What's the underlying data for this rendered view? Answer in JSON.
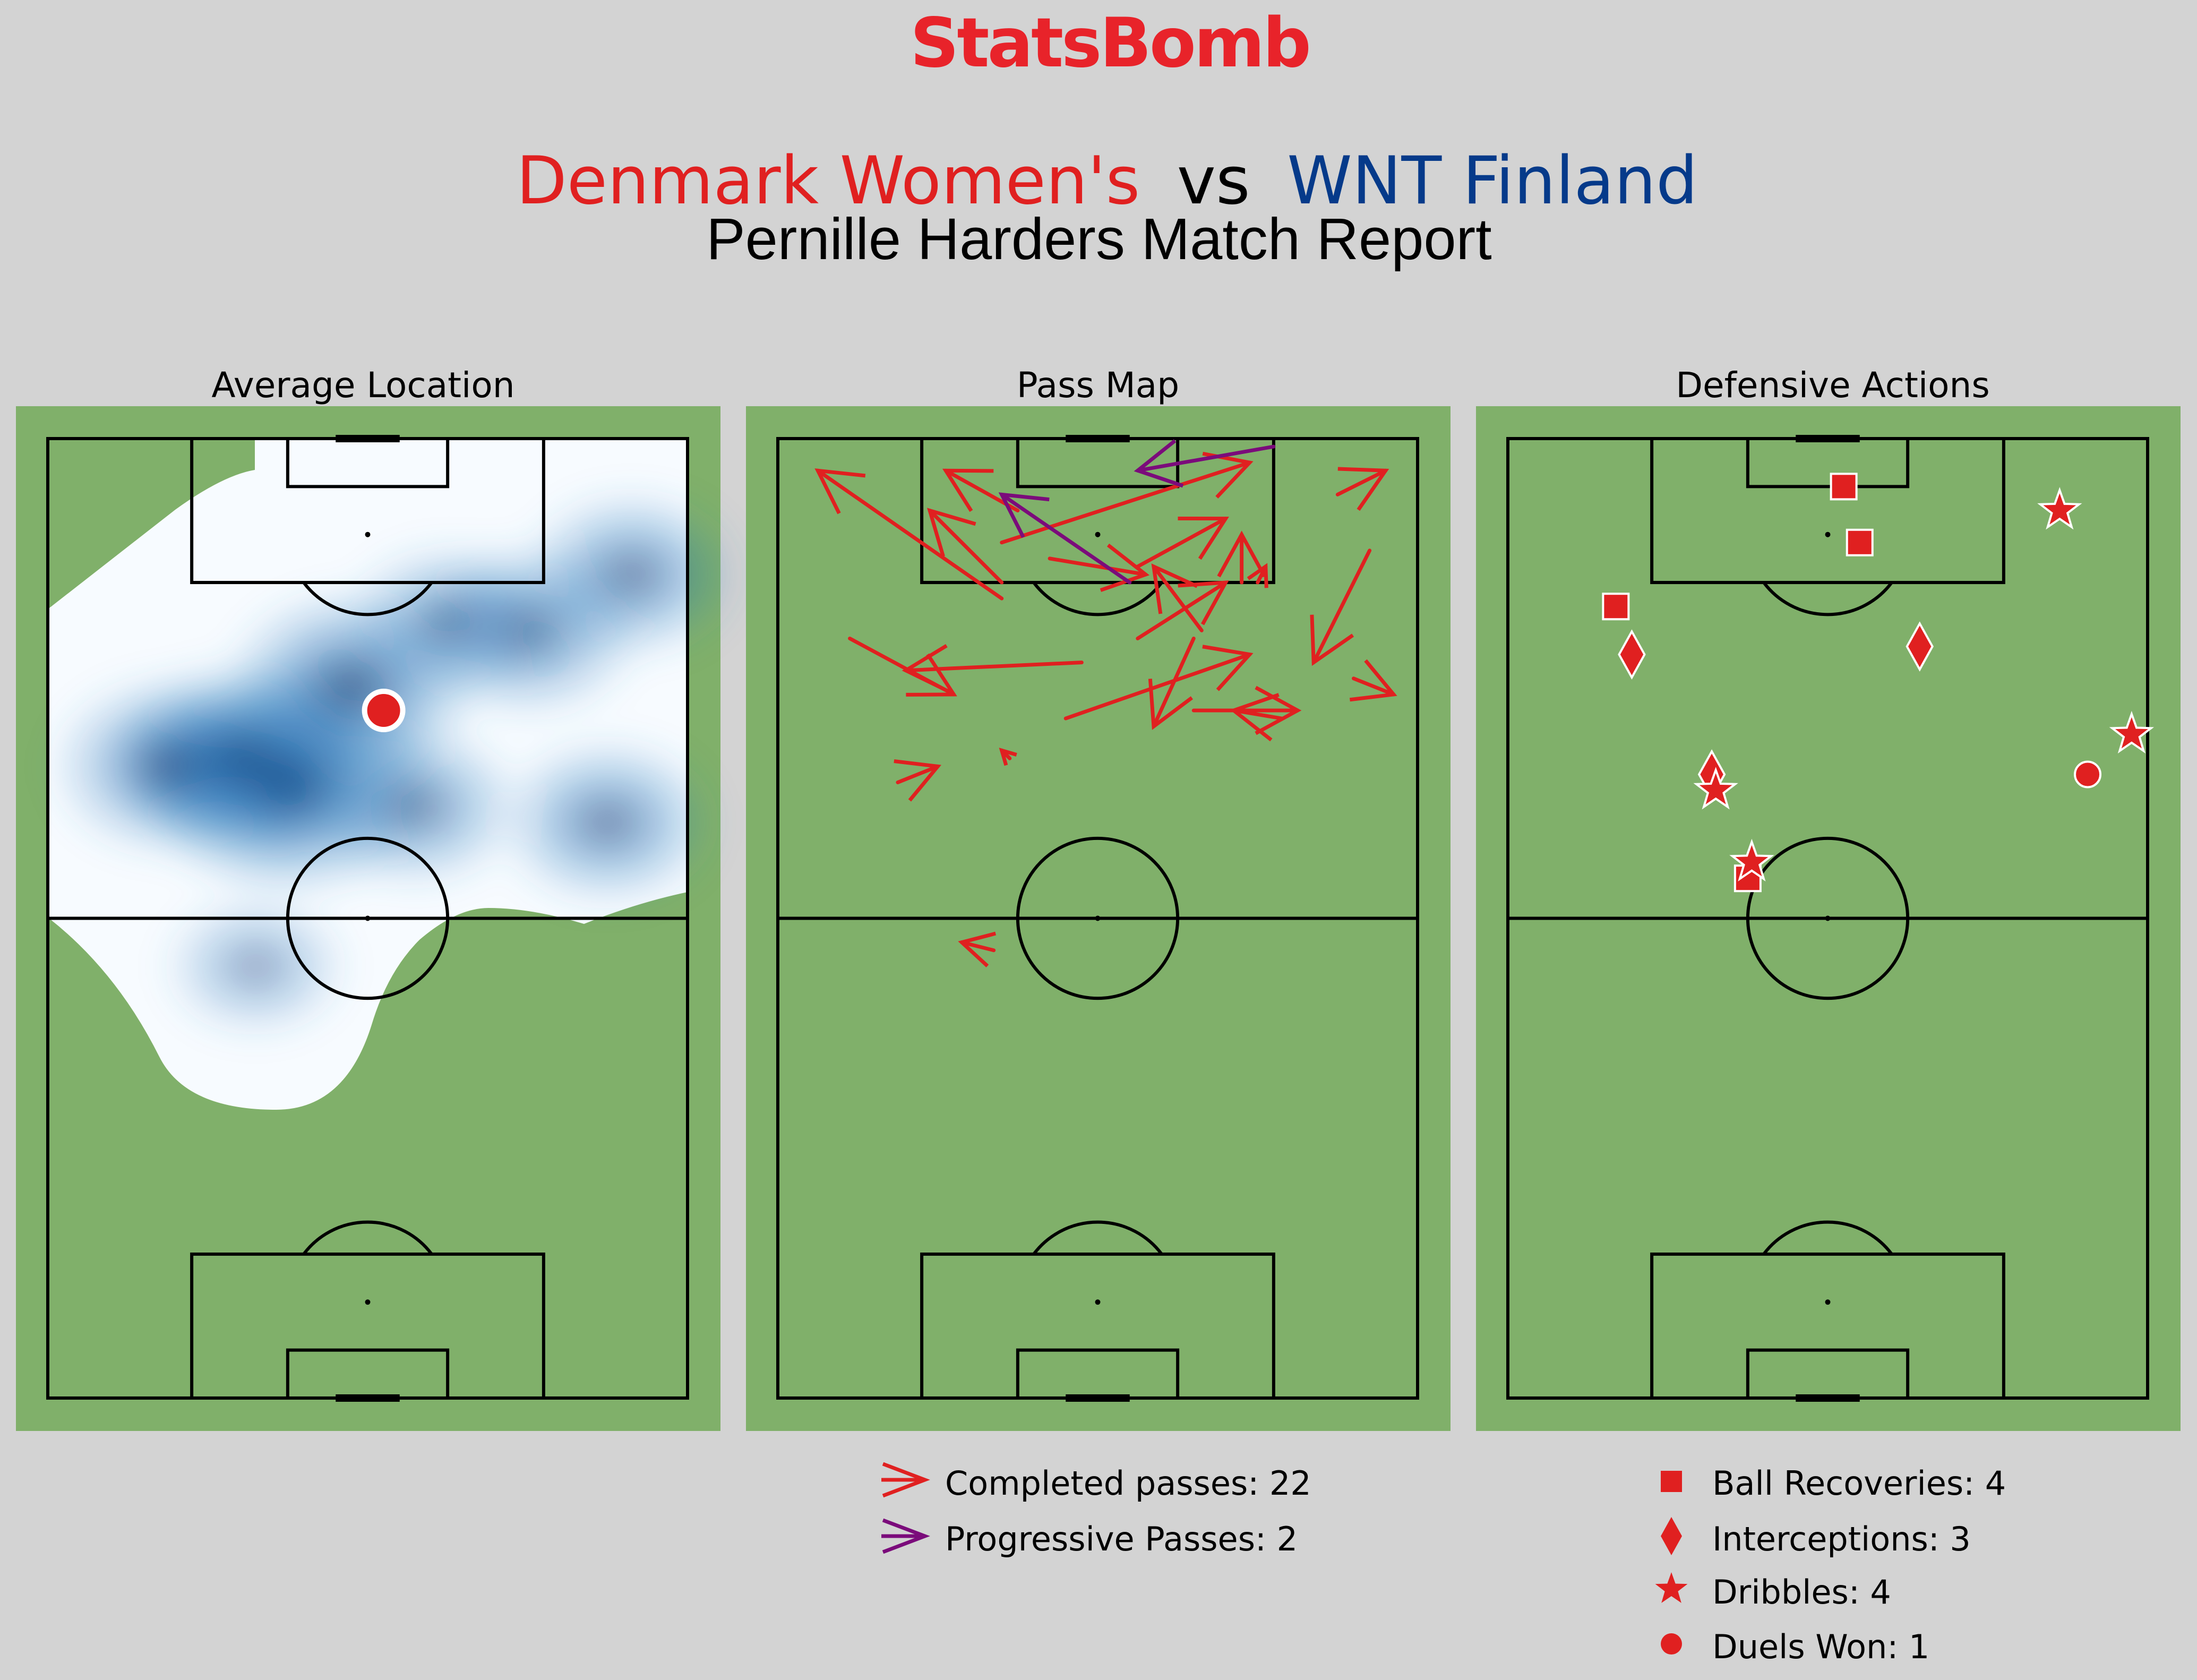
{
  "brand": {
    "name": "StatsBomb",
    "color": "#e8232a"
  },
  "header": {
    "home_team": "Denmark Women's",
    "vs": "vs",
    "away_team": "WNT Finland",
    "home_color": "#e02020",
    "away_color": "#053a8a",
    "subtitle": "Pernille Harders Match Report"
  },
  "colors": {
    "background": "#d3d3d3",
    "pitch": "#80b06a",
    "lines": "#000000",
    "completed": "#e02020",
    "progressive": "#7b0b7b",
    "marker": "#e02020",
    "heat_light": "#f7fbff",
    "heat_dark": "#08306b"
  },
  "chart_data": [
    {
      "type": "heatmap",
      "title": "Average Location",
      "pitch": "vertical, attacking upward",
      "xlim": [
        0,
        80
      ],
      "ylim": [
        0,
        120
      ],
      "average_location": {
        "x": 42,
        "y": 86
      },
      "density_hotspots": [
        {
          "x": 30,
          "y": 77,
          "weight": 1.0
        },
        {
          "x": 24,
          "y": 80,
          "weight": 0.7
        },
        {
          "x": 38,
          "y": 89,
          "weight": 0.7
        },
        {
          "x": 15,
          "y": 79,
          "weight": 0.55
        },
        {
          "x": 60,
          "y": 96,
          "weight": 0.5
        },
        {
          "x": 73,
          "y": 103,
          "weight": 0.45
        },
        {
          "x": 70,
          "y": 72,
          "weight": 0.45
        },
        {
          "x": 46,
          "y": 74,
          "weight": 0.4
        },
        {
          "x": 50,
          "y": 97,
          "weight": 0.35
        },
        {
          "x": 26,
          "y": 54,
          "weight": 0.2
        }
      ]
    },
    {
      "type": "scatter",
      "title": "Pass Map",
      "xlim": [
        0,
        80
      ],
      "ylim": [
        0,
        120
      ],
      "legend": [
        {
          "label": "Completed passes: 22",
          "kind": "completed"
        },
        {
          "label": "Progressive Passes: 2",
          "kind": "progressive"
        }
      ],
      "passes": [
        {
          "kind": "completed",
          "x": 30,
          "y": 111,
          "end_x": 21,
          "end_y": 116
        },
        {
          "kind": "completed",
          "x": 28,
          "y": 100,
          "end_x": 5,
          "end_y": 116
        },
        {
          "kind": "completed",
          "x": 28,
          "y": 102,
          "end_x": 19,
          "end_y": 111
        },
        {
          "kind": "completed",
          "x": 9,
          "y": 95,
          "end_x": 22,
          "end_y": 88
        },
        {
          "kind": "completed",
          "x": 38,
          "y": 92,
          "end_x": 16,
          "end_y": 91
        },
        {
          "kind": "completed",
          "x": 29,
          "y": 80,
          "end_x": 28,
          "end_y": 81
        },
        {
          "kind": "completed",
          "x": 15,
          "y": 77,
          "end_x": 20,
          "end_y": 79
        },
        {
          "kind": "completed",
          "x": 27,
          "y": 56,
          "end_x": 23,
          "end_y": 57
        },
        {
          "kind": "completed",
          "x": 36,
          "y": 85,
          "end_x": 59,
          "end_y": 93
        },
        {
          "kind": "completed",
          "x": 63,
          "y": 85,
          "end_x": 57,
          "end_y": 86
        },
        {
          "kind": "completed",
          "x": 53,
          "y": 96,
          "end_x": 47,
          "end_y": 104
        },
        {
          "kind": "completed",
          "x": 45,
          "y": 95,
          "end_x": 56,
          "end_y": 102
        },
        {
          "kind": "completed",
          "x": 34,
          "y": 105,
          "end_x": 46,
          "end_y": 103
        },
        {
          "kind": "completed",
          "x": 28,
          "y": 107,
          "end_x": 59,
          "end_y": 117
        },
        {
          "kind": "completed",
          "x": 45,
          "y": 104,
          "end_x": 56,
          "end_y": 110
        },
        {
          "kind": "completed",
          "x": 52,
          "y": 95,
          "end_x": 47,
          "end_y": 84
        },
        {
          "kind": "completed",
          "x": 52,
          "y": 86,
          "end_x": 65,
          "end_y": 86
        },
        {
          "kind": "completed",
          "x": 60,
          "y": 102,
          "end_x": 61,
          "end_y": 104
        },
        {
          "kind": "completed",
          "x": 58,
          "y": 102,
          "end_x": 58,
          "end_y": 108
        },
        {
          "kind": "completed",
          "x": 74,
          "y": 106,
          "end_x": 67,
          "end_y": 92
        },
        {
          "kind": "completed",
          "x": 72,
          "y": 90,
          "end_x": 77,
          "end_y": 88
        },
        {
          "kind": "completed",
          "x": 70,
          "y": 113,
          "end_x": 76,
          "end_y": 116
        },
        {
          "kind": "progressive",
          "x": 44,
          "y": 102,
          "end_x": 28,
          "end_y": 113
        },
        {
          "kind": "progressive",
          "x": 62,
          "y": 119,
          "end_x": 45,
          "end_y": 116
        }
      ]
    },
    {
      "type": "scatter",
      "title": "Defensive Actions",
      "xlim": [
        0,
        80
      ],
      "ylim": [
        0,
        120
      ],
      "legend": [
        {
          "label": "Ball Recoveries: 4",
          "kind": "recovery",
          "marker": "square"
        },
        {
          "label": "Interceptions: 3",
          "kind": "interception",
          "marker": "diamond"
        },
        {
          "label": "Dribbles: 4",
          "kind": "dribble",
          "marker": "star"
        },
        {
          "label": "Duels Won: 1",
          "kind": "duel",
          "marker": "circle"
        }
      ],
      "events": [
        {
          "kind": "recovery",
          "x": 42,
          "y": 114
        },
        {
          "kind": "recovery",
          "x": 44,
          "y": 107
        },
        {
          "kind": "recovery",
          "x": 13.5,
          "y": 99
        },
        {
          "kind": "recovery",
          "x": 30,
          "y": 65
        },
        {
          "kind": "interception",
          "x": 15.5,
          "y": 93
        },
        {
          "kind": "interception",
          "x": 51.5,
          "y": 94
        },
        {
          "kind": "interception",
          "x": 25.5,
          "y": 78
        },
        {
          "kind": "dribble",
          "x": 69,
          "y": 111
        },
        {
          "kind": "dribble",
          "x": 78,
          "y": 83
        },
        {
          "kind": "dribble",
          "x": 26,
          "y": 76
        },
        {
          "kind": "dribble",
          "x": 30.5,
          "y": 67
        },
        {
          "kind": "duel",
          "x": 72.5,
          "y": 78
        }
      ]
    }
  ]
}
